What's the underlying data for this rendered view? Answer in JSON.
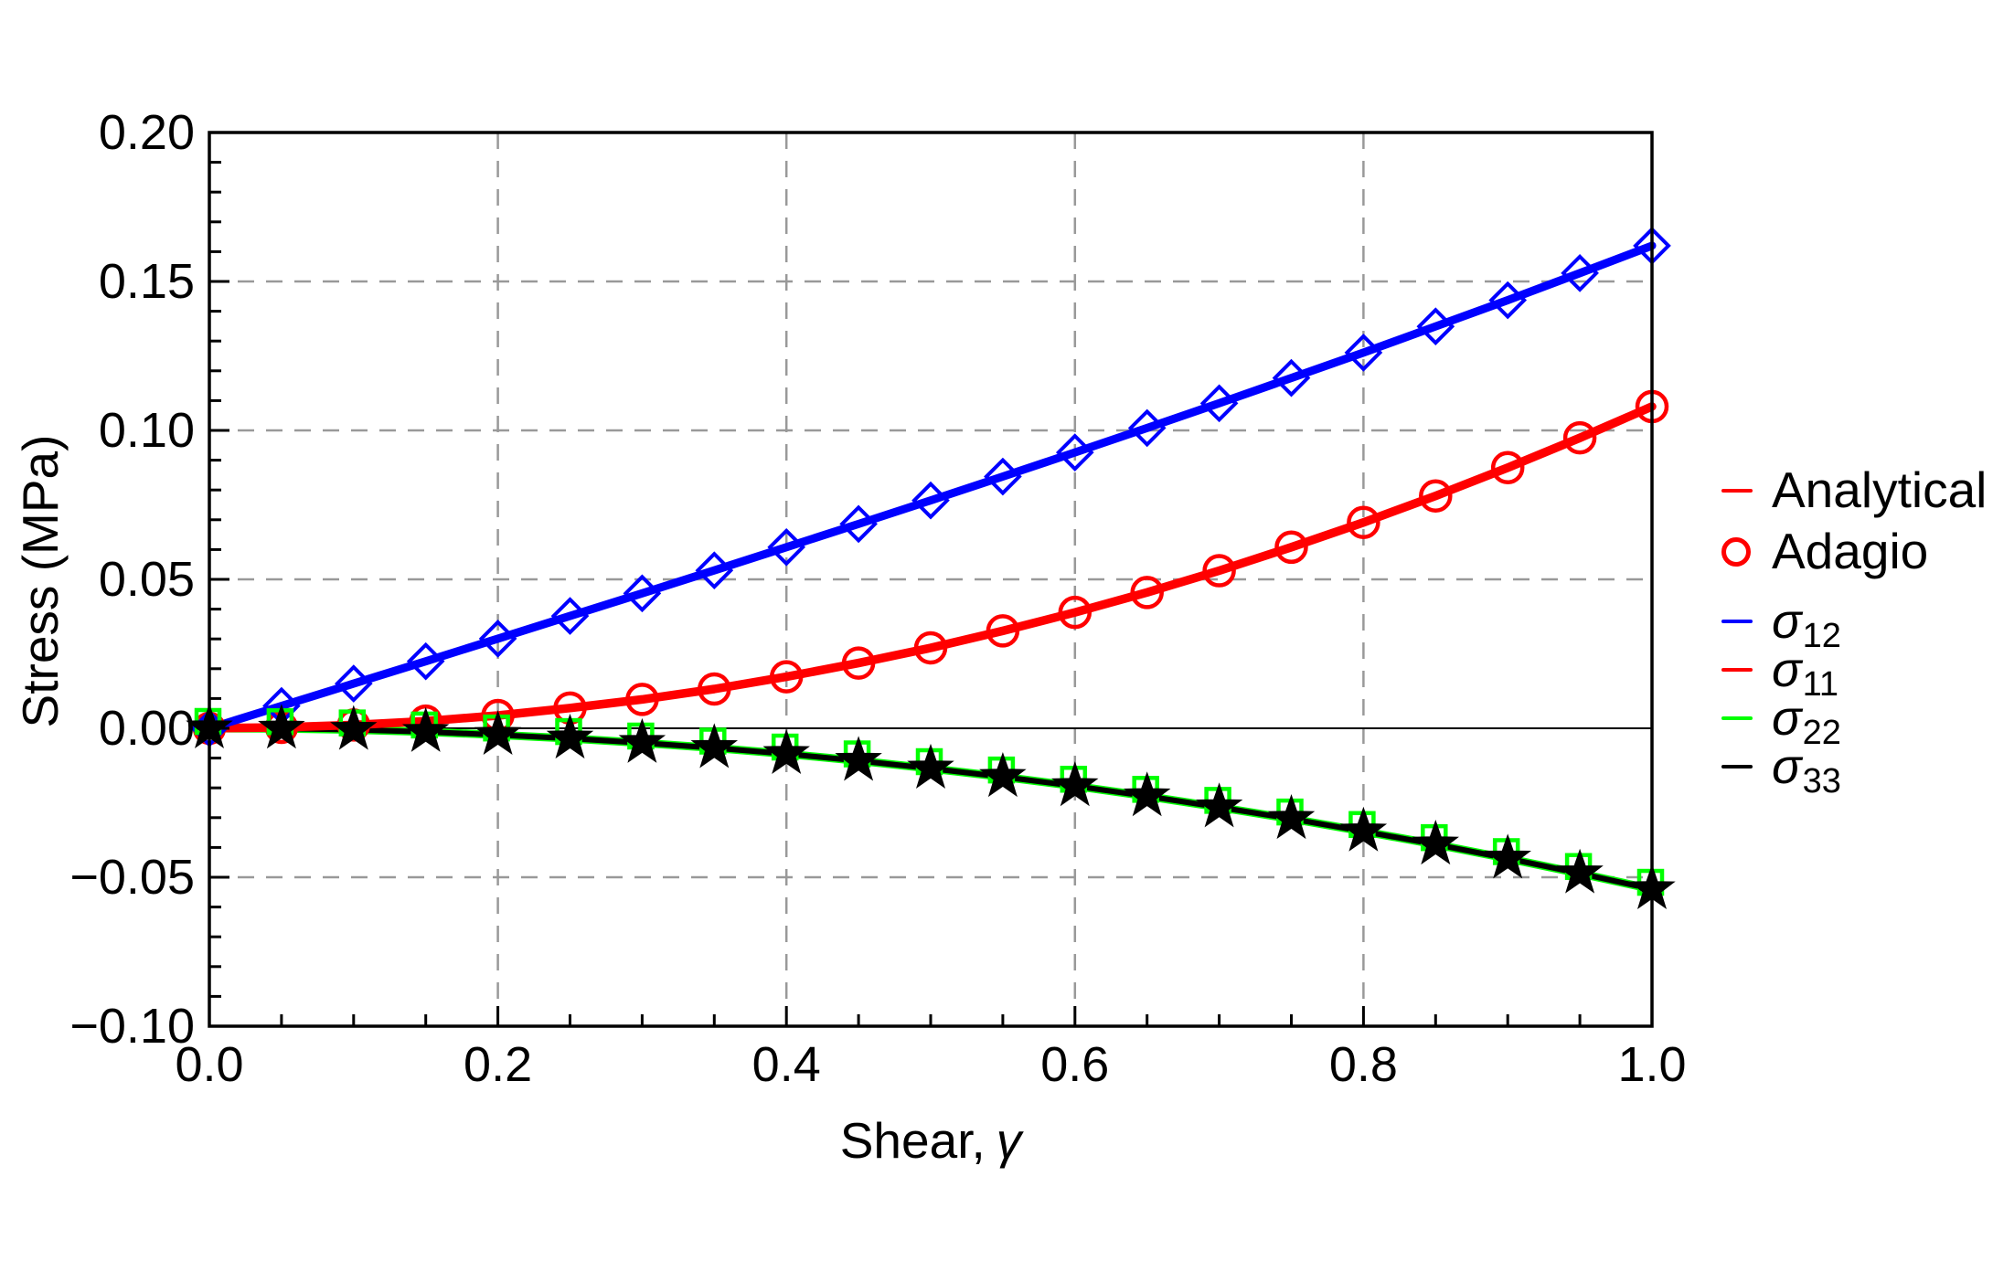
{
  "figure": {
    "background": "#ffffff",
    "y_axis_title": "Stress (MPa)",
    "x_axis_title_text": "Shear,",
    "x_axis_title_symbol": "γ"
  },
  "legend": {
    "top_items": [
      {
        "id": "analytical",
        "label": "Analytical",
        "marker": "line",
        "color": "#ff0000"
      },
      {
        "id": "adagio",
        "label": "Adagio",
        "marker": "open-circle",
        "color": "#ff0000"
      }
    ],
    "sigma_items": [
      {
        "id": "sigma-12",
        "symbol": "σ",
        "sub": "12",
        "marker": "line",
        "color": "#0000ff"
      },
      {
        "id": "sigma-11",
        "symbol": "σ",
        "sub": "11",
        "marker": "line",
        "color": "#ff0000"
      },
      {
        "id": "sigma-22",
        "symbol": "σ",
        "sub": "22",
        "marker": "line",
        "color": "#00ff00"
      },
      {
        "id": "sigma-33",
        "symbol": "σ",
        "sub": "33",
        "marker": "line",
        "color": "#000000"
      }
    ]
  },
  "chart_data": {
    "type": "line",
    "title": "",
    "xlabel": "Shear, γ",
    "ylabel": "Stress (MPa)",
    "xlim": [
      0.0,
      1.0
    ],
    "ylim": [
      -0.1,
      0.2
    ],
    "grid": true,
    "grid_color": "#999999",
    "frame_color": "#000000",
    "legend_position": "right-outside",
    "x_major_ticks": [
      0.0,
      0.2,
      0.4,
      0.6,
      0.8,
      1.0
    ],
    "x_tick_labels": [
      "0.0",
      "0.2",
      "0.4",
      "0.6",
      "0.8",
      "1.0"
    ],
    "x_minor_step": 0.05,
    "y_major_ticks": [
      0.2,
      0.15,
      0.1,
      0.05,
      0.0,
      -0.05,
      -0.1
    ],
    "y_tick_labels": [
      "0.20",
      "0.15",
      "0.10",
      "0.05",
      "0.00",
      "−0.05",
      "−0.10"
    ],
    "y_minor_step": 0.01,
    "x_gridlines": [
      0.2,
      0.4,
      0.6,
      0.8
    ],
    "y_gridlines": [
      0.15,
      0.1,
      0.05,
      -0.05
    ],
    "zero_line": 0.0,
    "x": [
      0,
      0.05,
      0.1,
      0.15,
      0.2,
      0.25,
      0.3,
      0.35,
      0.4,
      0.45,
      0.5,
      0.55,
      0.6,
      0.65,
      0.7,
      0.75,
      0.8,
      0.85,
      0.9,
      0.95,
      1.0
    ],
    "series": [
      {
        "name": "σ12",
        "color": "#0000ff",
        "marker": "diamond",
        "line_width": 9,
        "values": [
          0,
          0.0075,
          0.015,
          0.0225,
          0.0301,
          0.0377,
          0.0453,
          0.053,
          0.0608,
          0.0686,
          0.0765,
          0.0845,
          0.0926,
          0.1008,
          0.1091,
          0.1176,
          0.1261,
          0.1349,
          0.1437,
          0.1528,
          0.162
        ]
      },
      {
        "name": "σ11",
        "color": "#ff0000",
        "marker": "circle",
        "line_width": 9.5,
        "values": [
          0,
          0.0003,
          0.0011,
          0.0024,
          0.0043,
          0.0068,
          0.0097,
          0.0132,
          0.0173,
          0.0219,
          0.027,
          0.0327,
          0.0389,
          0.0456,
          0.0529,
          0.0608,
          0.0691,
          0.078,
          0.0875,
          0.0975,
          0.108
        ]
      },
      {
        "name": "σ22",
        "color": "#00ff00",
        "marker": "square",
        "line_width": 9,
        "values": [
          0,
          -0.0001,
          -0.0005,
          -0.0012,
          -0.0022,
          -0.0034,
          -0.0049,
          -0.0066,
          -0.0086,
          -0.0109,
          -0.0135,
          -0.0163,
          -0.0194,
          -0.0228,
          -0.0265,
          -0.0304,
          -0.0346,
          -0.039,
          -0.0437,
          -0.0487,
          -0.054
        ]
      },
      {
        "name": "σ33",
        "color": "#000000",
        "marker": "star",
        "line_width": 6,
        "values": [
          0,
          -0.0001,
          -0.0005,
          -0.0012,
          -0.0022,
          -0.0034,
          -0.0049,
          -0.0066,
          -0.0086,
          -0.0109,
          -0.0135,
          -0.0163,
          -0.0194,
          -0.0228,
          -0.0265,
          -0.0304,
          -0.0346,
          -0.039,
          -0.0437,
          -0.0487,
          -0.054
        ]
      }
    ]
  }
}
